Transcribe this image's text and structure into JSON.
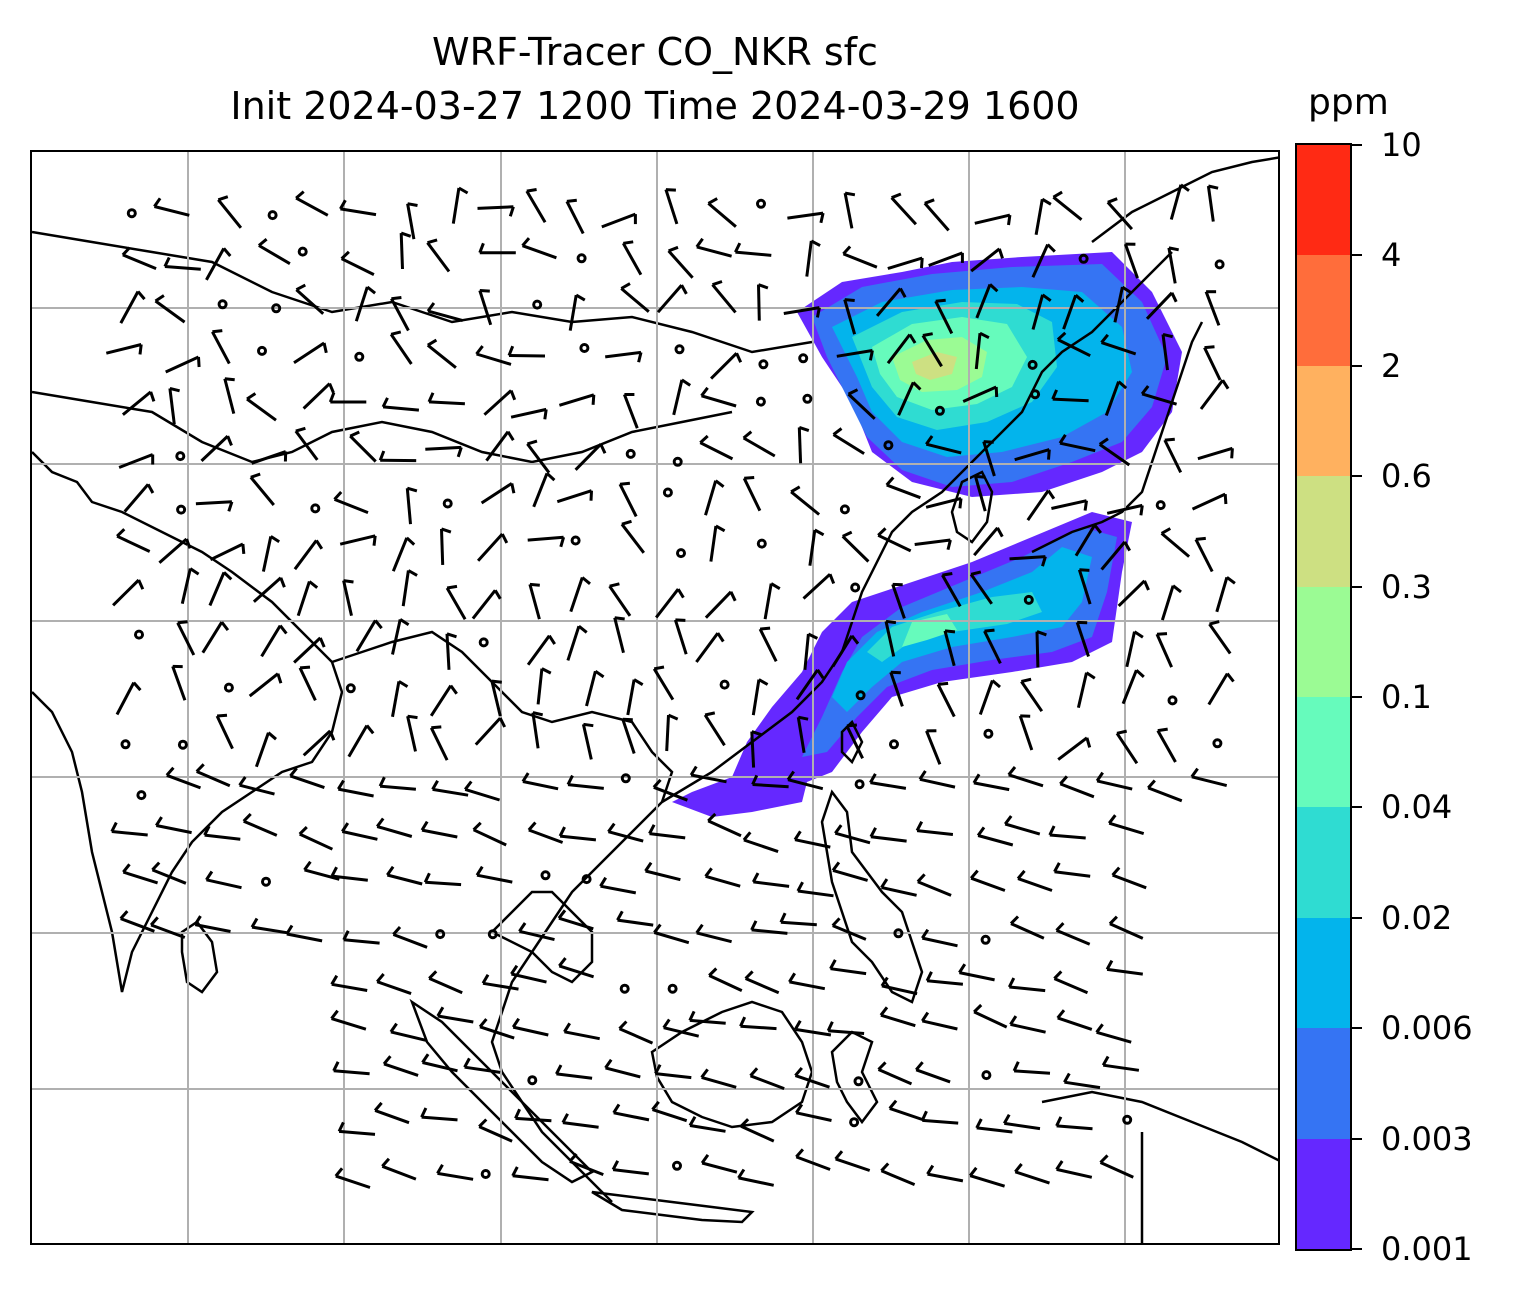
{
  "title": {
    "line1": "WRF-Tracer CO_NKR sfc",
    "line2": "Init 2024-03-27 1200 Time 2024-03-29 1600"
  },
  "colorbar": {
    "unit": "ppm",
    "levels": [
      "0.001",
      "0.003",
      "0.006",
      "0.02",
      "0.04",
      "0.1",
      "0.3",
      "0.6",
      "2",
      "4",
      "10"
    ],
    "colors": [
      "#6528ff",
      "#3574f3",
      "#03b4ec",
      "#2fdcd2",
      "#66fbbc",
      "#9bfb94",
      "#cde082",
      "#ffb15f",
      "#ff6d3b",
      "#ff2a14"
    ]
  },
  "map": {
    "type": "filled contour map with wind barbs",
    "variable": "CO_NKR surface tracer concentration",
    "gridlines": true,
    "coastlines": true,
    "wind_barbs": true
  }
}
